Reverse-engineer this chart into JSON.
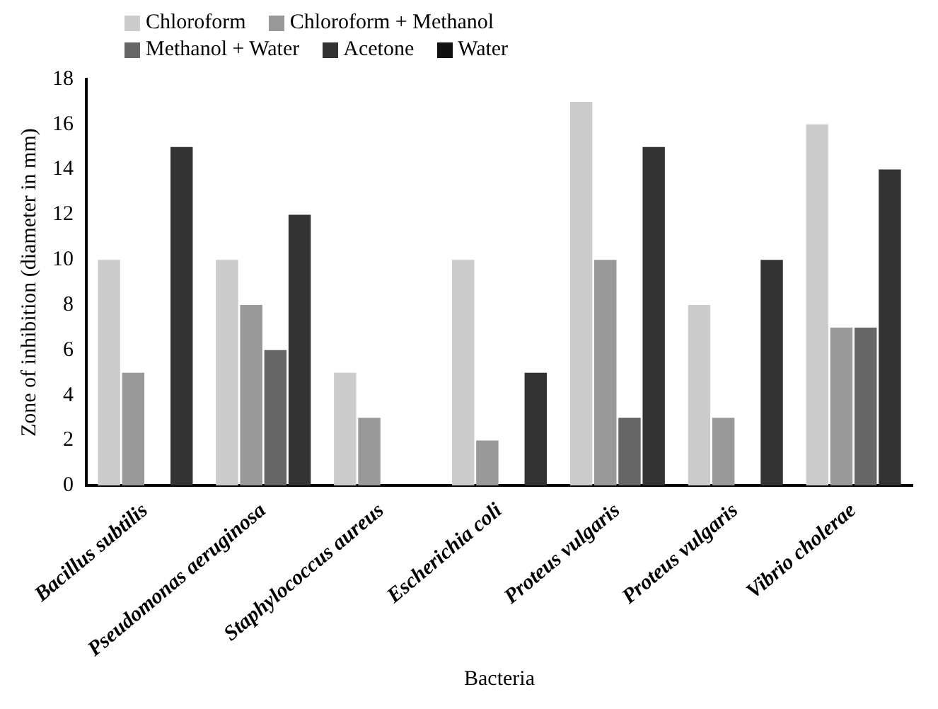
{
  "chart_data": {
    "type": "bar",
    "xlabel": "Bacteria",
    "ylabel": "Zone of inhibition (diameter in mm)",
    "categories": [
      "Bacillus subtilis",
      "Pseudomonas aeruginosa",
      "Staphylococcus aureus",
      "Escherichia coli",
      "Proteus vulgaris",
      "Proteus vulgaris",
      "Vibrio cholerae"
    ],
    "series": [
      {
        "name": "Chloroform",
        "color": "#cccccc",
        "values": [
          10,
          10,
          5,
          10,
          17,
          8,
          16
        ]
      },
      {
        "name": "Chloroform + Methanol",
        "color": "#999999",
        "values": [
          5,
          8,
          3,
          2,
          10,
          3,
          7
        ]
      },
      {
        "name": "Methanol + Water",
        "color": "#666666",
        "values": [
          0,
          6,
          0,
          0,
          3,
          0,
          7
        ]
      },
      {
        "name": "Acetone",
        "color": "#333333",
        "values": [
          15,
          12,
          0,
          5,
          15,
          10,
          14
        ]
      },
      {
        "name": "Water",
        "color": "#111111",
        "values": [
          null,
          null,
          null,
          null,
          null,
          null,
          null
        ]
      }
    ],
    "ylim": [
      0,
      18
    ],
    "yticks": [
      0,
      2,
      4,
      6,
      8,
      10,
      12,
      14,
      16,
      18
    ],
    "grid": false,
    "legend": "top left"
  }
}
